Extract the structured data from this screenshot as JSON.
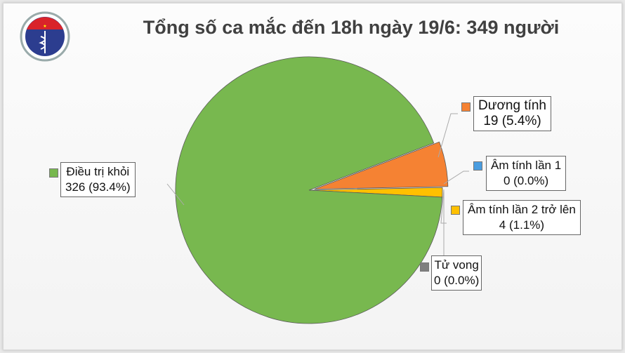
{
  "logo": {
    "text_top": "BỘ Y TẾ",
    "text_bottom": "MINISTRY OF HEALTH"
  },
  "chart_data": {
    "type": "pie",
    "title": "Tổng số ca mắc đến 18h ngày 19/6: 349 người",
    "total": 349,
    "slices": [
      {
        "name": "Âm tính lần 2 trở lên",
        "value": 4,
        "percent": "1.1%",
        "label": "4 (1.1%)",
        "color": "#ffc000"
      },
      {
        "name": "Dương tính",
        "value": 19,
        "percent": "5.4%",
        "label": "19 (5.4%)",
        "color": "#f58233",
        "exploded": true
      },
      {
        "name": "Điều trị khỏi",
        "value": 326,
        "percent": "93.4%",
        "label": "326 (93.4%)",
        "color": "#78b84f"
      },
      {
        "name": "Tử vong",
        "value": 0,
        "percent": "0.0%",
        "label": "0 (0.0%)",
        "color": "#7f7f7f"
      },
      {
        "name": "Âm tính lần 1",
        "value": 0,
        "percent": "0.0%",
        "label": "0 (0.0%)",
        "color": "#4a9de0"
      }
    ]
  }
}
